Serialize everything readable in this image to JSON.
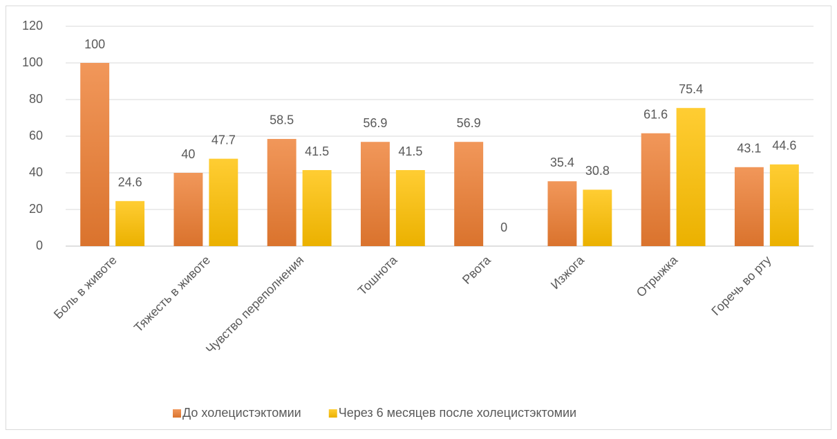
{
  "chart_data": {
    "type": "bar",
    "categories": [
      "Боль в животе",
      "Тяжесть в животе",
      "Чувство переполнения",
      "Тошнота",
      "Рвота",
      "Изжога",
      "Отрыжка",
      "Горечь во рту"
    ],
    "series": [
      {
        "name": "До холецистэктомии",
        "color": "#ed7d31",
        "values": [
          100,
          40,
          58.5,
          56.9,
          56.9,
          35.4,
          61.6,
          43.1
        ]
      },
      {
        "name": "Через 6 месяцев после холецистэктомии",
        "color": "#ffc000",
        "values": [
          24.6,
          47.7,
          41.5,
          41.5,
          0,
          30.8,
          75.4,
          44.6
        ]
      }
    ],
    "ylim": [
      0,
      120
    ],
    "yticks": [
      0,
      20,
      40,
      60,
      80,
      100,
      120
    ],
    "grid": true,
    "legend": "bottom"
  }
}
